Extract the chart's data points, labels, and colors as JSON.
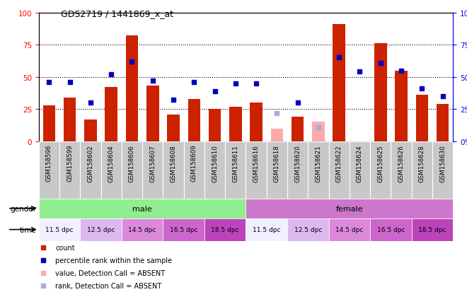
{
  "title": "GDS2719 / 1441869_x_at",
  "samples": [
    "GSM158596",
    "GSM158599",
    "GSM158602",
    "GSM158604",
    "GSM158606",
    "GSM158607",
    "GSM158608",
    "GSM158609",
    "GSM158610",
    "GSM158611",
    "GSM158616",
    "GSM158618",
    "GSM158620",
    "GSM158621",
    "GSM158622",
    "GSM158624",
    "GSM158625",
    "GSM158626",
    "GSM158628",
    "GSM158630"
  ],
  "red_bars": [
    28,
    34,
    17,
    42,
    82,
    43,
    21,
    33,
    25,
    27,
    30,
    0,
    19,
    0,
    91,
    0,
    76,
    55,
    36,
    29
  ],
  "blue_dots": [
    46,
    46,
    30,
    52,
    62,
    47,
    32,
    46,
    39,
    45,
    45,
    0,
    30,
    0,
    65,
    54,
    61,
    55,
    41,
    35
  ],
  "pink_bars": [
    0,
    0,
    0,
    0,
    0,
    0,
    0,
    0,
    0,
    0,
    0,
    10,
    0,
    15,
    0,
    0,
    0,
    0,
    0,
    0
  ],
  "lightblue_dots": [
    0,
    0,
    0,
    0,
    0,
    0,
    0,
    0,
    0,
    0,
    0,
    22,
    0,
    11,
    0,
    0,
    0,
    0,
    0,
    0
  ],
  "absent_mask": [
    false,
    false,
    false,
    false,
    false,
    false,
    false,
    false,
    false,
    false,
    false,
    true,
    false,
    true,
    false,
    false,
    false,
    false,
    false,
    false
  ],
  "bar_color": "#CC2200",
  "dot_color": "#0000BB",
  "pink_color": "#FFAAAA",
  "lightblue_color": "#AAAADD",
  "yticks": [
    0,
    25,
    50,
    75,
    100
  ]
}
